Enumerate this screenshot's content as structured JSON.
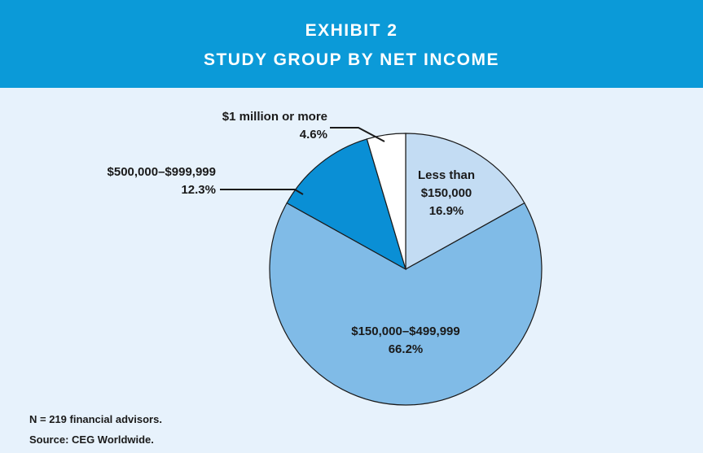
{
  "chart_data": {
    "type": "pie",
    "title": "EXHIBIT 2",
    "subtitle": "STUDY GROUP BY NET INCOME",
    "categories": [
      "Less than $150,000",
      "$150,000–$499,999",
      "$500,000–$999,999",
      "$1 million or more"
    ],
    "values": [
      16.9,
      66.2,
      12.3,
      4.6
    ],
    "value_labels": [
      "16.9%",
      "66.2%",
      "12.3%",
      "4.6%"
    ],
    "colors": [
      "#c3dcf3",
      "#80bbe7",
      "#0a8fd5",
      "#ffffff"
    ],
    "notes": [
      "N = 219 financial advisors.",
      "Source: CEG Worldwide."
    ]
  }
}
